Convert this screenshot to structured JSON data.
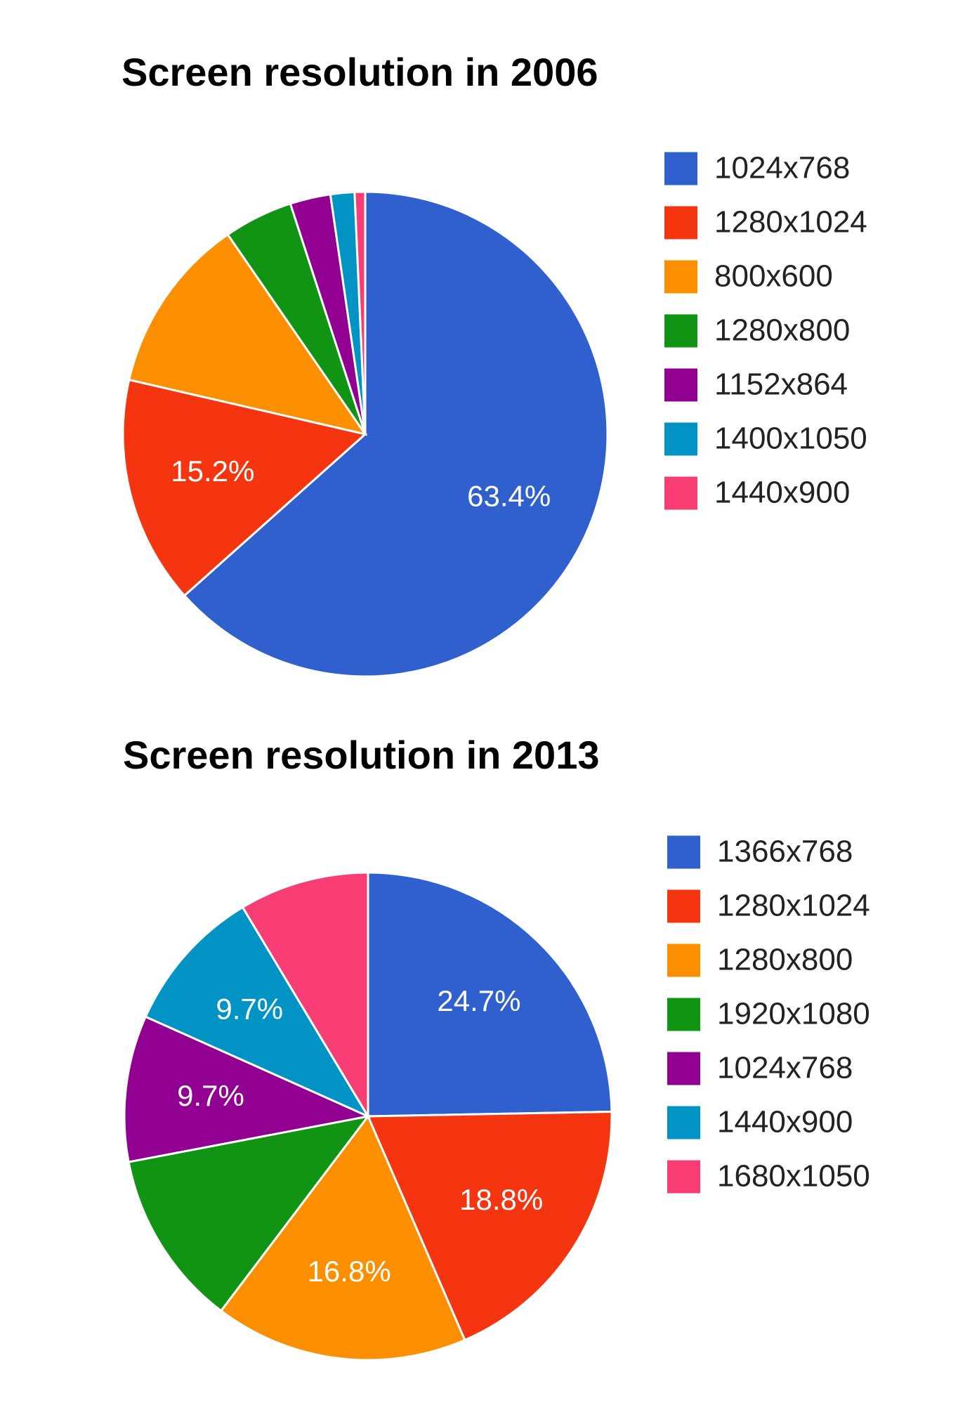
{
  "chart_data": [
    {
      "type": "pie",
      "title": "Screen resolution in 2006",
      "categories": [
        "1024x768",
        "1280x1024",
        "800x600",
        "1280x800",
        "1152x864",
        "1400x1050",
        "1440x900"
      ],
      "values": [
        63.4,
        15.2,
        11.8,
        4.6,
        2.7,
        1.6,
        0.7
      ],
      "value_labels": [
        "63.4%",
        "15.2%",
        null,
        null,
        null,
        null,
        null
      ],
      "colors": [
        "#2f60ce",
        "#f4350f",
        "#fb8f00",
        "#119314",
        "#920092",
        "#0093c3",
        "#f83d75"
      ]
    },
    {
      "type": "pie",
      "title": "Screen resolution in 2013",
      "categories": [
        "1366x768",
        "1280x1024",
        "1280x800",
        "1920x1080",
        "1024x768",
        "1440x900",
        "1680x1050"
      ],
      "values": [
        24.7,
        18.8,
        16.8,
        11.7,
        9.7,
        9.7,
        8.6
      ],
      "value_labels": [
        "24.7%",
        "18.8%",
        "16.8%",
        null,
        "9.7%",
        "9.7%",
        null
      ],
      "colors": [
        "#2f60ce",
        "#f4350f",
        "#fb8f00",
        "#119314",
        "#920092",
        "#0093c3",
        "#f83d75"
      ]
    }
  ]
}
